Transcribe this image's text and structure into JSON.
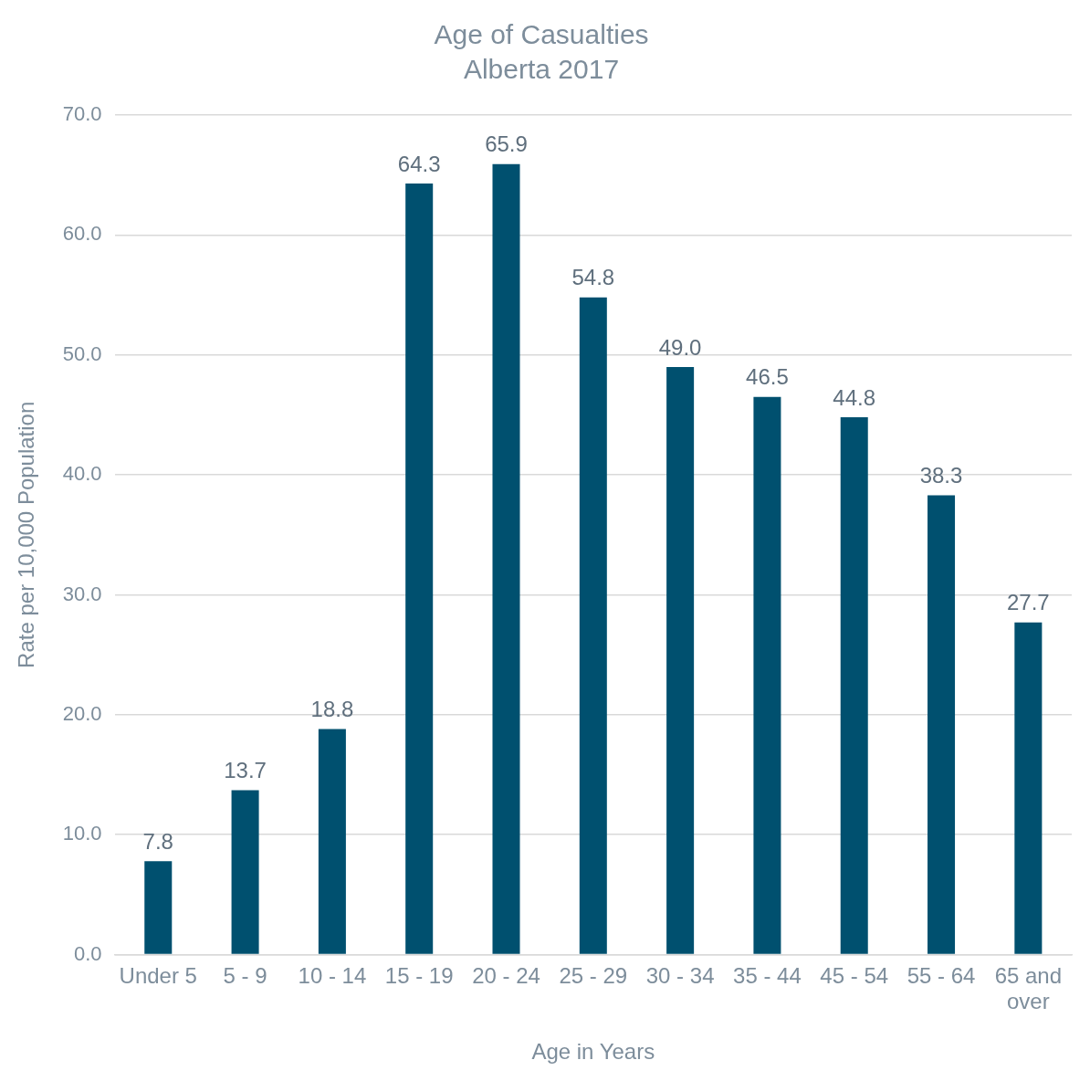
{
  "chart_data": {
    "type": "bar",
    "title": "Age of Casualties",
    "subtitle": "Alberta 2017",
    "xlabel": "Age in Years",
    "ylabel": "Rate per 10,000 Population",
    "categories": [
      "Under 5",
      "5 - 9",
      "10 - 14",
      "15 - 19",
      "20 - 24",
      "25 - 29",
      "30 - 34",
      "35 - 44",
      "45 - 54",
      "55 - 64",
      "65 and over"
    ],
    "values": [
      7.8,
      13.7,
      18.8,
      64.3,
      65.9,
      54.8,
      49.0,
      46.5,
      44.8,
      38.3,
      27.7
    ],
    "value_labels": [
      "7.8",
      "13.7",
      "18.8",
      "64.3",
      "65.9",
      "54.8",
      "49.0",
      "46.5",
      "44.8",
      "38.3",
      "27.7"
    ],
    "color": "#00506f",
    "ylim": [
      0,
      70
    ],
    "yticks": [
      {
        "value": 0,
        "label": "0.0"
      },
      {
        "value": 10,
        "label": "10.0"
      },
      {
        "value": 20,
        "label": "20.0"
      },
      {
        "value": 30,
        "label": "30.0"
      },
      {
        "value": 40,
        "label": "40.0"
      },
      {
        "value": 50,
        "label": "50.0"
      },
      {
        "value": 60,
        "label": "60.0"
      },
      {
        "value": 70,
        "label": "70.0"
      }
    ],
    "grid": "y",
    "legend": false
  }
}
